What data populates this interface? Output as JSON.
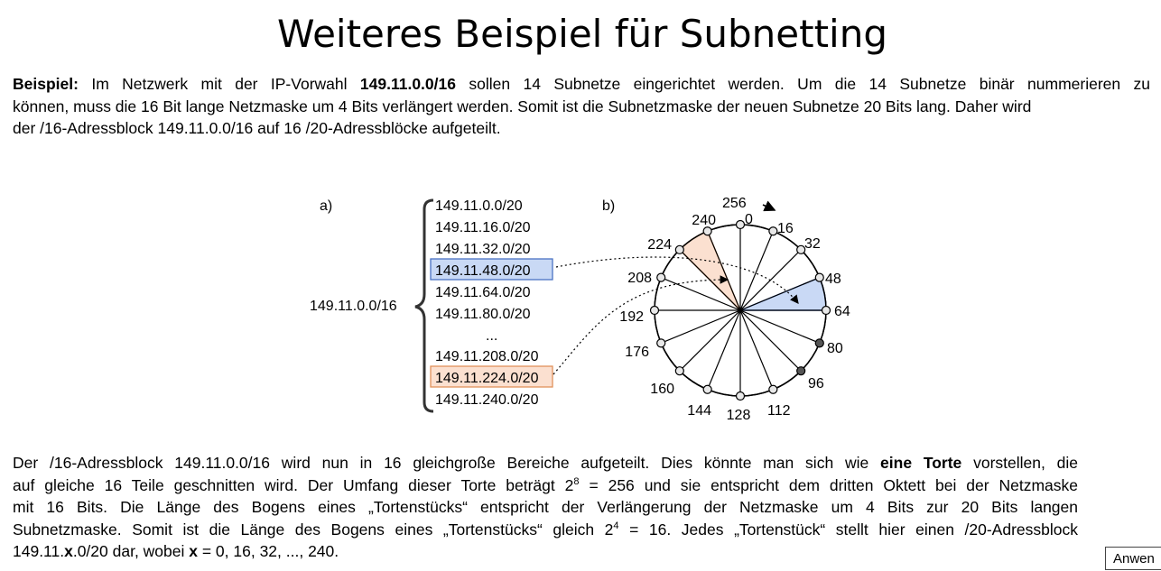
{
  "title": "Weiteres Beispiel für Subnetting",
  "intro": {
    "label": "Beispiel:",
    "l1a": " Im Netzwerk mit der IP-Vorwahl ",
    "prefix": "149.11.0.0/16",
    "l1b": " sollen 14 Subnetze eingerichtet werden. Um die 14 Subnetze binär nummerieren zu",
    "l2": "können, muss die 16 Bit lange Netzmaske um 4 Bits verlängert werden. Somit ist die Subnetzmaske der neuen Subnetze 20 Bits lang. Daher wird",
    "l3": "der /16-Adressblock 149.11.0.0/16 auf 16 /20-Adressblöcke aufgeteilt."
  },
  "figure": {
    "label_a": "a)",
    "label_b": "b)",
    "block": "149.11.0.0/16",
    "subnets": [
      "149.11.0.0/20",
      "149.11.16.0/20",
      "149.11.32.0/20",
      "149.11.48.0/20",
      "149.11.64.0/20",
      "149.11.80.0/20",
      "...",
      "149.11.208.0/20",
      "149.11.224.0/20",
      "149.11.240.0/20"
    ],
    "highlight_blue": "149.11.48.0/20",
    "highlight_orange": "149.11.224.0/20",
    "circle_top": "256",
    "circle_labels": [
      "0",
      "16",
      "32",
      "48",
      "64",
      "80",
      "96",
      "112",
      "128",
      "144",
      "160",
      "176",
      "192",
      "208",
      "224",
      "240"
    ],
    "colors": {
      "blue_fill": "#c9d9f5",
      "blue_border": "#4a72c4",
      "orange_fill": "#fbe0d0",
      "orange_border": "#e0915a"
    }
  },
  "body": {
    "l1a": "Der /16-Adressblock 149.11.0.0/16 wird nun in 16 gleichgroße Bereiche aufgeteilt. Dies könnte man sich wie ",
    "l1b": "eine Torte",
    "l1c": " vorstellen, die",
    "l2a": "auf gleiche 16 Teile geschnitten wird. Der Umfang dieser Torte beträgt 2",
    "l2sup": "8",
    "l2b": " = 256 und sie entspricht dem dritten Oktett bei der Netzmaske",
    "l3": "mit 16 Bits. Die Länge des Bogens eines „Tortenstücks“ entspricht der Verlängerung der Netzmaske um 4 Bits zur 20 Bits langen",
    "l4a": "Subnetzmaske. Somit ist die Länge des Bogens eines „Tortenstücks“ gleich 2",
    "l4sup": "4",
    "l4b": " = 16. Jedes „Tortenstück“ stellt hier einen /20-Adressblock",
    "l5a": "149.11.",
    "l5x": "x",
    "l5b": ".0/20 dar, wobei ",
    "l5x2": "x",
    "l5c": " = 0, 16, 32, ..., 240."
  },
  "corner_button": "Anwen"
}
